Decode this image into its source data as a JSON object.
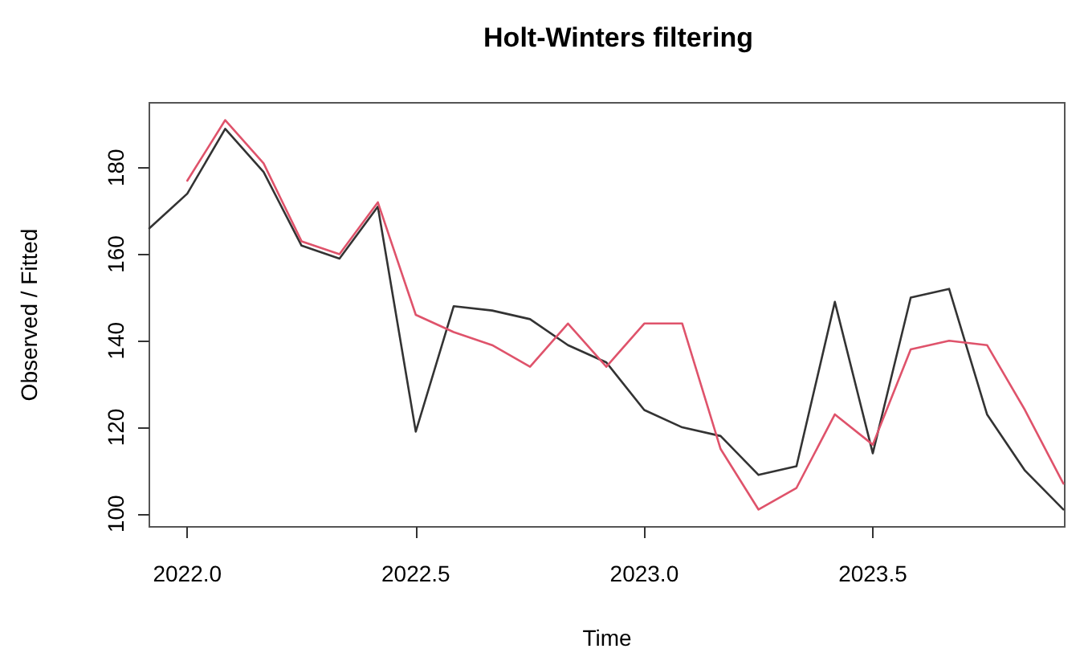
{
  "chart_data": {
    "type": "line",
    "title": "Holt-Winters filtering",
    "xlabel": "Time",
    "ylabel": "Observed / Fitted",
    "xlim": [
      2021.917,
      2023.92
    ],
    "ylim": [
      97,
      195
    ],
    "xticks": [
      {
        "value": 2022,
        "label": "2022.0"
      },
      {
        "value": 2022.5,
        "label": "2022.5"
      },
      {
        "value": 2023,
        "label": "2023.0"
      },
      {
        "value": 2023.5,
        "label": "2023.5"
      }
    ],
    "yticks": [
      100,
      120,
      140,
      160,
      180
    ],
    "grid": false,
    "marker": "none",
    "line_style": "solid",
    "series": [
      {
        "color": "#333333",
        "x": [
          2021.917,
          2022.0,
          2022.083,
          2022.167,
          2022.25,
          2022.333,
          2022.417,
          2022.5,
          2022.583,
          2022.667,
          2022.75,
          2022.833,
          2022.917,
          2023.0,
          2023.083,
          2023.167,
          2023.25,
          2023.333,
          2023.417,
          2023.5,
          2023.583,
          2023.667,
          2023.75,
          2023.833,
          2023.917
        ],
        "values": [
          166,
          174,
          189,
          179,
          162,
          159,
          171,
          119,
          148,
          147,
          145,
          139,
          135,
          124,
          120,
          118,
          109,
          111,
          149,
          114,
          150,
          152,
          123,
          110,
          101
        ]
      },
      {
        "color": "#df536b",
        "x": [
          2022.0,
          2022.083,
          2022.167,
          2022.25,
          2022.333,
          2022.417,
          2022.5,
          2022.583,
          2022.667,
          2022.75,
          2022.833,
          2022.917,
          2023.0,
          2023.083,
          2023.167,
          2023.25,
          2023.333,
          2023.417,
          2023.5,
          2023.583,
          2023.667,
          2023.75,
          2023.833,
          2023.917
        ],
        "values": [
          177,
          191,
          181,
          163,
          160,
          172,
          146,
          142,
          139,
          134,
          144,
          134,
          144,
          144,
          115,
          101,
          106,
          123,
          116,
          138,
          140,
          139,
          124,
          107
        ]
      }
    ]
  }
}
